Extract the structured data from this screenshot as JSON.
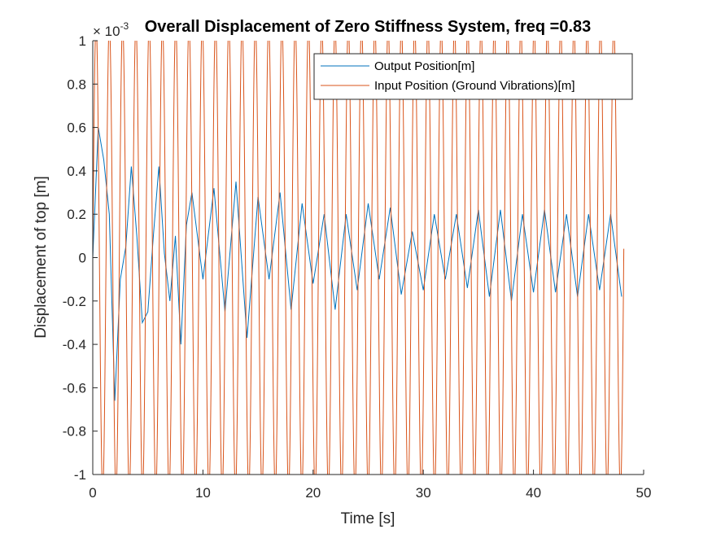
{
  "chart_data": {
    "type": "line",
    "title": "Overall Displacement of Zero Stiffness System, freq =0.83",
    "xlabel": "Time [s]",
    "ylabel": "Displacement of top [m]",
    "xlim": [
      0,
      50
    ],
    "ylim": [
      -1,
      1
    ],
    "y_multiplier": {
      "base": "× 10",
      "exponent": "-3"
    },
    "x_ticks": [
      "0",
      "10",
      "20",
      "30",
      "40",
      "50"
    ],
    "y_ticks": [
      "-1",
      "-0.8",
      "-0.6",
      "-0.4",
      "-0.2",
      "0",
      "0.2",
      "0.4",
      "0.6",
      "0.8",
      "1"
    ],
    "grid": false,
    "legend_position": "top-right",
    "series": [
      {
        "name": "Output Position[m]",
        "color": "#0072BD",
        "description": "response, peaks approx",
        "x": [
          0,
          0.5,
          1.0,
          1.5,
          2.0,
          2.5,
          3.0,
          3.5,
          4.0,
          4.5,
          5.0,
          5.5,
          6.0,
          6.5,
          7.0,
          7.5,
          8.0,
          8.5,
          9.0,
          10,
          11,
          12,
          13,
          14,
          15,
          16,
          17,
          18,
          19,
          20,
          21,
          22,
          23,
          24,
          25,
          26,
          27,
          28,
          29,
          30,
          31,
          32,
          33,
          34,
          35,
          36,
          37,
          38,
          39,
          40,
          41,
          42,
          43,
          44,
          45,
          46,
          47,
          48
        ],
        "y": [
          0,
          0.6,
          0.45,
          0.2,
          -0.66,
          -0.1,
          0.05,
          0.42,
          0.1,
          -0.3,
          -0.25,
          0.1,
          0.42,
          0.02,
          -0.2,
          0.1,
          -0.4,
          0.15,
          0.3,
          -0.1,
          0.32,
          -0.25,
          0.35,
          -0.37,
          0.28,
          -0.1,
          0.3,
          -0.24,
          0.25,
          -0.12,
          0.2,
          -0.24,
          0.2,
          -0.15,
          0.25,
          -0.1,
          0.23,
          -0.17,
          0.12,
          -0.15,
          0.2,
          -0.1,
          0.2,
          -0.14,
          0.22,
          -0.18,
          0.22,
          -0.2,
          0.2,
          -0.16,
          0.22,
          -0.16,
          0.2,
          -0.18,
          0.2,
          -0.15,
          0.2,
          -0.18
        ]
      },
      {
        "name": "Input Position (Ground Vibrations)[m]",
        "color": "#D95319",
        "description": "sinusoid amplitude 1e-3 m (clipped to axes), frequency 0.83 Hz",
        "amplitude": 1.0,
        "frequency_hz": 0.83,
        "t_end": 48.2
      }
    ]
  }
}
